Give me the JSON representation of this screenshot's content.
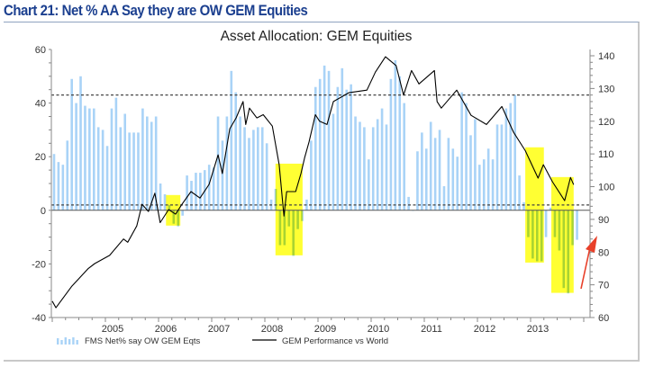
{
  "header": {
    "title": "Chart 21: Net % AA Say they are OW GEM Equities"
  },
  "chart_data": {
    "type": "bar+line",
    "title": "Asset Allocation: GEM Equities",
    "left_axis": {
      "range": [
        -40,
        60
      ],
      "ticks": [
        "60",
        "40",
        "20",
        "0",
        "-20",
        "-40"
      ]
    },
    "right_axis": {
      "range": [
        60,
        140
      ],
      "ticks": [
        "140",
        "130",
        "120",
        "110",
        "100",
        "90",
        "80",
        "70",
        "60"
      ]
    },
    "x_axis": {
      "range": [
        2004,
        2014
      ],
      "tick_labels": [
        "2005",
        "2006",
        "2007",
        "2008",
        "2009",
        "2010",
        "2011",
        "2012",
        "2013"
      ]
    },
    "reference_lines_left_axis": [
      43,
      2
    ],
    "legend": {
      "placement": "bottom-left",
      "entries": [
        "FMS Net% say OW GEM Eqts",
        "GEM Performance vs World"
      ]
    },
    "series": [
      {
        "name": "FMS Net% say OW GEM Eqts",
        "type": "bar",
        "axis": "left",
        "start": "2004-01",
        "frequency": "monthly",
        "color": "#a9d3f7",
        "values": [
          21,
          18,
          17,
          26,
          49,
          40,
          50,
          39,
          38,
          38,
          31,
          30,
          24,
          38,
          42,
          31,
          36,
          29,
          29,
          29,
          38,
          35,
          33,
          35,
          10,
          6,
          2,
          -5,
          -6,
          -2,
          13,
          11,
          14,
          14,
          15,
          17,
          16,
          35,
          26,
          35,
          52,
          44,
          35,
          31,
          27,
          30,
          31,
          31,
          25,
          4,
          8,
          -13,
          -13,
          -6,
          -17,
          -7,
          -4,
          4,
          26,
          46,
          49,
          54,
          52,
          36,
          46,
          53,
          45,
          47,
          35,
          33,
          31,
          19,
          31,
          34,
          38,
          32,
          49,
          56,
          50,
          40,
          5,
          0,
          22,
          29,
          23,
          33,
          27,
          30,
          9,
          27,
          23,
          20,
          44,
          40,
          28,
          34,
          17,
          19,
          23,
          19,
          32,
          32,
          38,
          40,
          43,
          13,
          3,
          -10,
          -18,
          -19,
          -19,
          -10,
          1,
          -10,
          -15,
          -29,
          -31,
          -13,
          -11
        ]
      },
      {
        "name": "GEM Performance vs World",
        "type": "line",
        "axis": "right",
        "color": "#000000",
        "points": [
          [
            2004.0,
            65
          ],
          [
            2004.07,
            63
          ],
          [
            2004.37,
            69.6
          ],
          [
            2004.68,
            75
          ],
          [
            2004.8,
            76.5
          ],
          [
            2005.08,
            79
          ],
          [
            2005.34,
            84
          ],
          [
            2005.42,
            83
          ],
          [
            2005.59,
            88
          ],
          [
            2005.69,
            94.6
          ],
          [
            2005.81,
            92.4
          ],
          [
            2005.93,
            98
          ],
          [
            2006.03,
            89
          ],
          [
            2006.19,
            93
          ],
          [
            2006.32,
            91.6
          ],
          [
            2006.44,
            94.6
          ],
          [
            2006.61,
            98.5
          ],
          [
            2006.78,
            96.5
          ],
          [
            2006.95,
            100.7
          ],
          [
            2007.12,
            109.7
          ],
          [
            2007.2,
            104
          ],
          [
            2007.34,
            117.7
          ],
          [
            2007.46,
            121
          ],
          [
            2007.59,
            126
          ],
          [
            2007.64,
            119
          ],
          [
            2007.71,
            124
          ],
          [
            2007.85,
            121
          ],
          [
            2007.97,
            122
          ],
          [
            2008.14,
            118.5
          ],
          [
            2008.27,
            106.7
          ],
          [
            2008.36,
            91
          ],
          [
            2008.41,
            98.5
          ],
          [
            2008.58,
            98.5
          ],
          [
            2008.68,
            104
          ],
          [
            2008.75,
            109
          ],
          [
            2008.83,
            113.6
          ],
          [
            2008.95,
            122
          ],
          [
            2009.03,
            120
          ],
          [
            2009.17,
            119
          ],
          [
            2009.29,
            126
          ],
          [
            2009.58,
            128.7
          ],
          [
            2009.92,
            129.5
          ],
          [
            2010.08,
            135
          ],
          [
            2010.27,
            139.7
          ],
          [
            2010.47,
            137
          ],
          [
            2010.61,
            128
          ],
          [
            2010.76,
            135.5
          ],
          [
            2010.9,
            131.4
          ],
          [
            2011.19,
            135.5
          ],
          [
            2011.24,
            126
          ],
          [
            2011.32,
            124
          ],
          [
            2011.61,
            129.5
          ],
          [
            2011.88,
            121.8
          ],
          [
            2012.17,
            119
          ],
          [
            2012.46,
            124.5
          ],
          [
            2012.68,
            116.6
          ],
          [
            2012.9,
            111
          ],
          [
            2013.14,
            102.6
          ],
          [
            2013.24,
            106.7
          ],
          [
            2013.41,
            101.5
          ],
          [
            2013.64,
            95.7
          ],
          [
            2013.75,
            102.8
          ],
          [
            2013.81,
            100.6
          ]
        ]
      }
    ],
    "highlights": [
      {
        "x": [
          2006.14,
          2006.41
        ],
        "y_left": [
          -5.7,
          5.7
        ],
        "color": "#ffff33"
      },
      {
        "x": [
          2008.2,
          2008.71
        ],
        "y_left": [
          -16.8,
          17.4
        ],
        "color": "#ffff33"
      },
      {
        "x": [
          2012.9,
          2013.25
        ],
        "y_left": [
          -19.5,
          23.5
        ],
        "color": "#ffff33"
      },
      {
        "x": [
          2013.39,
          2013.81
        ],
        "y_left": [
          -30.8,
          12.4
        ],
        "color": "#ffff33"
      }
    ],
    "annotation_arrow": {
      "color": "#e8402a",
      "direction": "up-right"
    }
  }
}
